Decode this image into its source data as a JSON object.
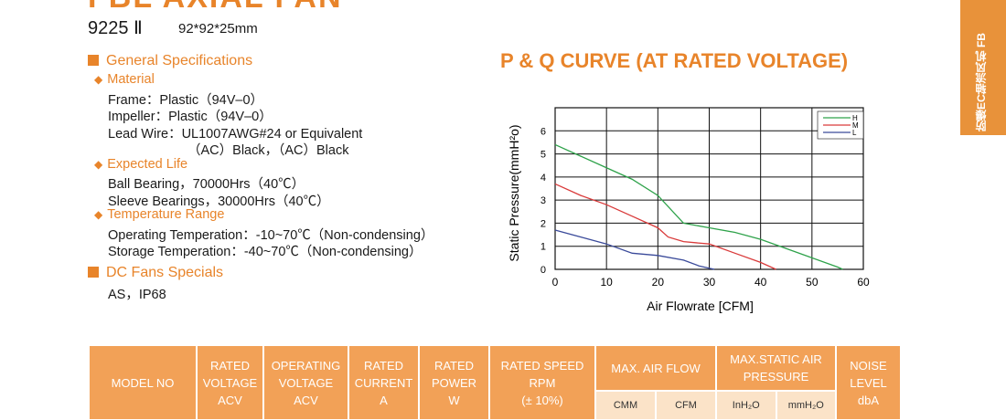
{
  "header": {
    "title": "FBL AXIAL FAN",
    "model": "9225 Ⅱ",
    "size": "92*92*25mm",
    "side_tab": "防爆EC轴流风机  FB"
  },
  "specs": [
    {
      "heading": "General Specifications",
      "items": [
        {
          "subheading": "Material",
          "lines": [
            "Frame：Plastic（94V–0）",
            "Impeller：Plastic（94V–0）",
            "Lead Wire：UL1007AWG#24 or Equivalent",
            "（AC）Black，（AC）Black"
          ]
        },
        {
          "subheading": "Expected Life",
          "lines": [
            "Ball Bearing，70000Hrs（40℃）",
            "Sleeve Bearings，30000Hrs（40℃）"
          ]
        },
        {
          "subheading": "Temperature Range",
          "lines": [
            "Operating Temperation：-10~70℃（Non-condensing）",
            "Storage Temperation：-40~70℃（Non-condensing）"
          ]
        }
      ]
    },
    {
      "heading": "DC Fans Specials",
      "items": [
        {
          "lines": [
            "AS，IP68"
          ]
        }
      ]
    }
  ],
  "chart_data": {
    "type": "line",
    "title": "P & Q CURVE (AT RATED VOLTAGE)",
    "y_label": "Static Pressure(mmH²o)",
    "x_label": "Air Flowrate  [CFM]",
    "xlim": [
      0,
      60
    ],
    "xticks": [
      0,
      10,
      20,
      30,
      40,
      50,
      60
    ],
    "ylim": [
      0,
      7
    ],
    "yticks": [
      0,
      1,
      2,
      3,
      4,
      5,
      6
    ],
    "grid": true,
    "legend": "top-right",
    "series": [
      {
        "name": "H",
        "color": "#2ea24a",
        "x": [
          0,
          5,
          10,
          15,
          20,
          25,
          30,
          35,
          40,
          45,
          50,
          55,
          56
        ],
        "values": [
          5.4,
          4.9,
          4.4,
          3.9,
          3.2,
          2.0,
          1.8,
          1.6,
          1.3,
          0.9,
          0.5,
          0.1,
          0
        ]
      },
      {
        "name": "M",
        "color": "#d93a3a",
        "x": [
          0,
          5,
          10,
          15,
          20,
          22,
          25,
          30,
          35,
          40,
          43
        ],
        "values": [
          3.7,
          3.2,
          2.8,
          2.3,
          1.8,
          1.4,
          1.2,
          1.1,
          0.7,
          0.3,
          0
        ]
      },
      {
        "name": "L",
        "color": "#3a4a9a",
        "x": [
          0,
          5,
          10,
          15,
          20,
          25,
          28,
          31
        ],
        "values": [
          1.7,
          1.4,
          1.1,
          0.7,
          0.6,
          0.4,
          0.15,
          0
        ]
      }
    ]
  },
  "table": {
    "header": [
      {
        "lines": [
          "MODEL NO"
        ]
      },
      {
        "lines": [
          "RATED",
          "VOLTAGE",
          "ACV"
        ]
      },
      {
        "lines": [
          "OPERATING",
          "VOLTAGE",
          "ACV"
        ]
      },
      {
        "lines": [
          "RATED",
          "CURRENT",
          "A"
        ]
      },
      {
        "lines": [
          "RATED",
          "POWER",
          "W"
        ]
      },
      {
        "lines": [
          "RATED SPEED",
          "RPM",
          "(± 10%)"
        ]
      },
      {
        "lines": [
          "MAX. AIR FLOW"
        ],
        "sub": [
          "CMM",
          "CFM"
        ]
      },
      {
        "lines": [
          "MAX.STATIC AIR",
          "PRESSURE"
        ],
        "sub": [
          "InH₂O",
          "mmH₂O"
        ]
      },
      {
        "lines": [
          "NOISE",
          "LEVEL",
          "dbA"
        ]
      }
    ]
  }
}
